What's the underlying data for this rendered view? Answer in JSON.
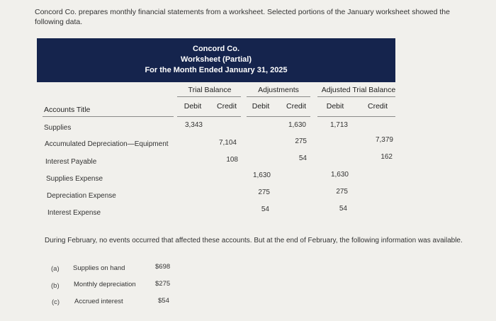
{
  "intro": "Concord Co. prepares monthly financial statements from a worksheet. Selected portions of the January worksheet showed the following data.",
  "worksheet": {
    "company": "Concord Co.",
    "title": "Worksheet (Partial)",
    "period": "For the Month Ended January 31, 2025",
    "groups": {
      "trial_balance": "Trial Balance",
      "adjustments": "Adjustments",
      "adjusted_trial_balance": "Adjusted Trial Balance"
    },
    "columns": {
      "accounts_title": "Accounts Title",
      "tb_debit": "Debit",
      "tb_credit": "Credit",
      "adj_debit": "Debit",
      "adj_credit": "Credit",
      "atb_debit": "Debit",
      "atb_credit": "Credit"
    },
    "rows": [
      {
        "account": "Supplies",
        "tb_debit": "3,343",
        "tb_credit": "",
        "adj_debit": "",
        "adj_credit": "1,630",
        "atb_debit": "1,713",
        "atb_credit": ""
      },
      {
        "account": "Accumulated Depreciation—Equipment",
        "tb_debit": "",
        "tb_credit": "7,104",
        "adj_debit": "",
        "adj_credit": "275",
        "atb_debit": "",
        "atb_credit": "7,379"
      },
      {
        "account": "Interest Payable",
        "tb_debit": "",
        "tb_credit": "108",
        "adj_debit": "",
        "adj_credit": "54",
        "atb_debit": "",
        "atb_credit": "162"
      },
      {
        "account": "Supplies Expense",
        "tb_debit": "",
        "tb_credit": "",
        "adj_debit": "1,630",
        "adj_credit": "",
        "atb_debit": "1,630",
        "atb_credit": ""
      },
      {
        "account": "Depreciation Expense",
        "tb_debit": "",
        "tb_credit": "",
        "adj_debit": "275",
        "adj_credit": "",
        "atb_debit": "275",
        "atb_credit": ""
      },
      {
        "account": "Interest Expense",
        "tb_debit": "",
        "tb_credit": "",
        "adj_debit": "54",
        "adj_credit": "",
        "atb_debit": "54",
        "atb_credit": ""
      }
    ]
  },
  "footer": "During February, no events occurred that affected these accounts. But at the end of February, the following information was available.",
  "info": [
    {
      "letter": "(a)",
      "label": "Supplies on hand",
      "value": "$698"
    },
    {
      "letter": "(b)",
      "label": "Monthly depreciation",
      "value": "$275"
    },
    {
      "letter": "(c)",
      "label": "Accrued interest",
      "value": "$54"
    }
  ]
}
